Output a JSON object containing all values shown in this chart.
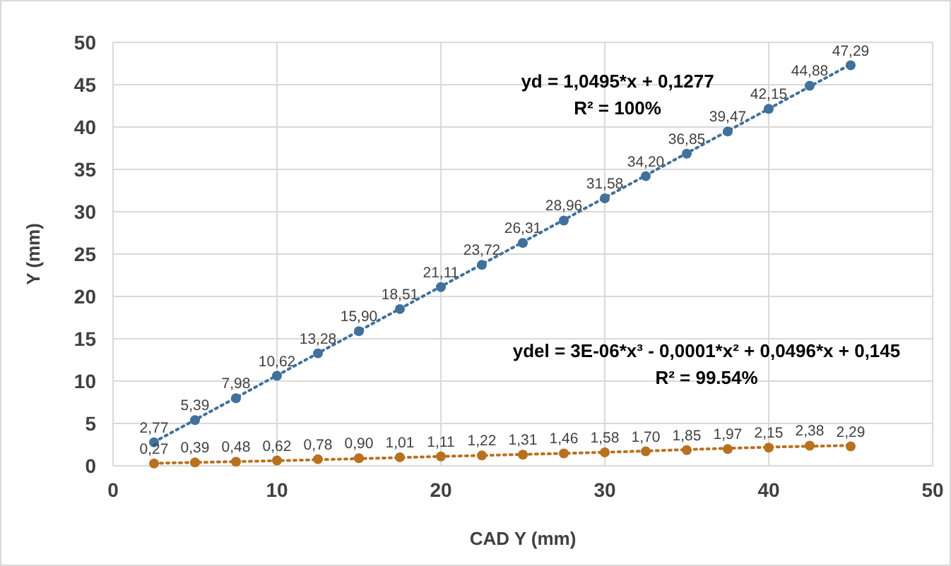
{
  "chart_data": {
    "type": "scatter",
    "xlabel": "CAD Y (mm)",
    "ylabel": "Y (mm)",
    "xlim": [
      0,
      50
    ],
    "xticks": [
      0,
      10,
      20,
      30,
      40,
      50
    ],
    "ylim": [
      0,
      50
    ],
    "yticks": [
      0,
      5,
      10,
      15,
      20,
      25,
      30,
      35,
      40,
      45,
      50
    ],
    "grid": true,
    "x": [
      2.5,
      5,
      7.5,
      10,
      12.5,
      15,
      17.5,
      20,
      22.5,
      25,
      27.5,
      30,
      32.5,
      35,
      37.5,
      40,
      42.5,
      45
    ],
    "series": [
      {
        "color": "#41719c",
        "marker": "circle",
        "values": [
          2.77,
          5.39,
          7.98,
          10.62,
          13.28,
          15.9,
          18.51,
          21.11,
          23.72,
          26.31,
          28.96,
          31.58,
          34.2,
          36.85,
          39.47,
          42.15,
          44.88,
          47.29
        ],
        "value_labels": [
          "2,77",
          "5,39",
          "7,98",
          "10,62",
          "13,28",
          "15,90",
          "18,51",
          "21,11",
          "23,72",
          "26,31",
          "28,96",
          "31,58",
          "34,20",
          "36,85",
          "39,47",
          "42,15",
          "44,88",
          "47,29"
        ]
      },
      {
        "color": "#b8711f",
        "marker": "circle",
        "values": [
          0.27,
          0.39,
          0.48,
          0.62,
          0.78,
          0.9,
          1.01,
          1.11,
          1.22,
          1.31,
          1.46,
          1.58,
          1.7,
          1.85,
          1.97,
          2.15,
          2.38,
          2.29
        ],
        "value_labels": [
          "0,27",
          "0,39",
          "0,48",
          "0,62",
          "0,78",
          "0,90",
          "1,01",
          "1,11",
          "1,22",
          "1,31",
          "1,46",
          "1,58",
          "1,70",
          "1,85",
          "1,97",
          "2,15",
          "2,38",
          "2,29"
        ]
      },
      {
        "type": "line",
        "color": "#41719c",
        "line_style": "dotted",
        "x": [
          2.5,
          45
        ],
        "values": [
          2.8,
          47.4
        ]
      },
      {
        "type": "line",
        "color": "#b8711f",
        "line_style": "dotted",
        "x": [
          2.5,
          10,
          20,
          30,
          40,
          45
        ],
        "values": [
          0.3,
          0.6,
          1.1,
          1.6,
          2.2,
          2.4
        ]
      }
    ],
    "annotations": [
      "yd = 1,0495*x + 0,1277",
      "R² = 100%",
      "ydel = 3E-06*x³ - 0,0001*x² + 0,0496*x + 0,145",
      "R² = 99.54%"
    ]
  }
}
